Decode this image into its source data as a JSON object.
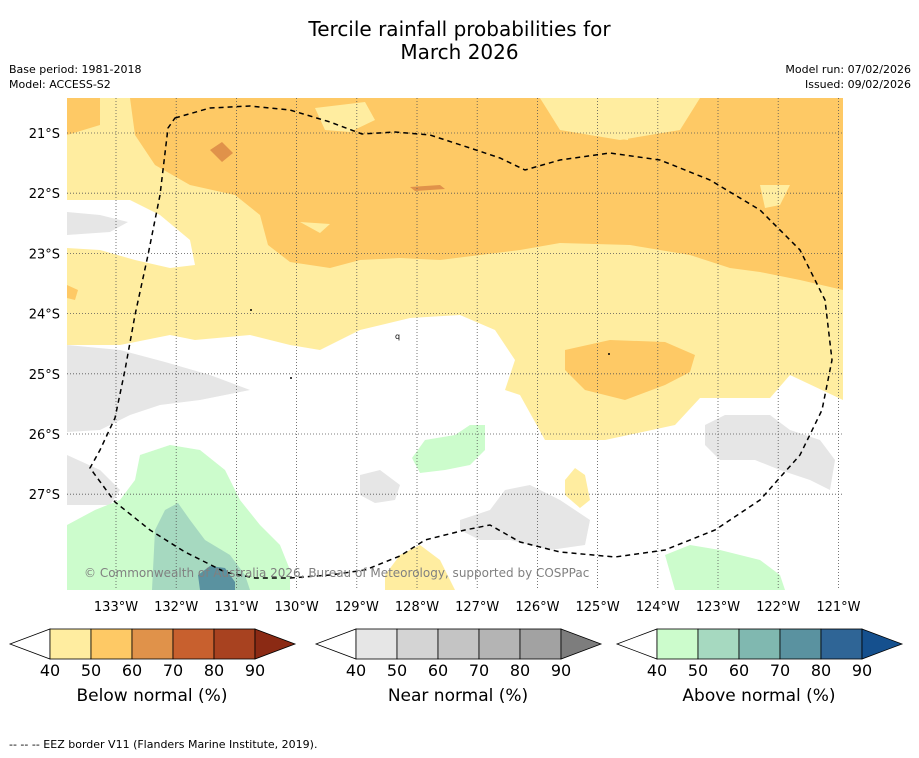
{
  "title_line1": "Tercile rainfall probabilities for",
  "title_line2": "March 2026",
  "meta_left": [
    "Base period: 1981-2018",
    "Model: ACCESS-S2"
  ],
  "meta_right": [
    "Model run: 07/02/2026",
    "Issued: 09/02/2026"
  ],
  "lat_labels": [
    "21°S",
    "22°S",
    "23°S",
    "24°S",
    "25°S",
    "26°S",
    "27°S"
  ],
  "lon_labels": [
    "133°W",
    "132°W",
    "131°W",
    "130°W",
    "129°W",
    "128°W",
    "127°W",
    "126°W",
    "125°W",
    "124°W",
    "123°W",
    "122°W",
    "121°W"
  ],
  "copyright": "© Commonwealth of Australia 2026, Bureau of Meteorology, supported by COSPPac",
  "colorbars": [
    {
      "name": "below",
      "label": "Below normal (%)",
      "ticks": [
        "40",
        "50",
        "60",
        "70",
        "80",
        "90"
      ],
      "colors": [
        "#ffeda0",
        "#fec965",
        "#e0924a",
        "#c8602e",
        "#a84220",
        "#8b2a14"
      ]
    },
    {
      "name": "near",
      "label": "Near normal (%)",
      "ticks": [
        "40",
        "50",
        "60",
        "70",
        "80",
        "90"
      ],
      "colors": [
        "#e6e6e6",
        "#d4d4d4",
        "#c4c4c4",
        "#b4b4b4",
        "#a2a2a2",
        "#7d7d7d"
      ]
    },
    {
      "name": "above",
      "label": "Above normal (%)",
      "ticks": [
        "40",
        "50",
        "60",
        "70",
        "80",
        "90"
      ],
      "colors": [
        "#ccfccc",
        "#a6d9c0",
        "#80b8b0",
        "#5a92a0",
        "#2f6596",
        "#15508e"
      ]
    }
  ],
  "footer": "--  --  -- EEZ border V11 (Flanders Marine Institute, 2019)."
}
